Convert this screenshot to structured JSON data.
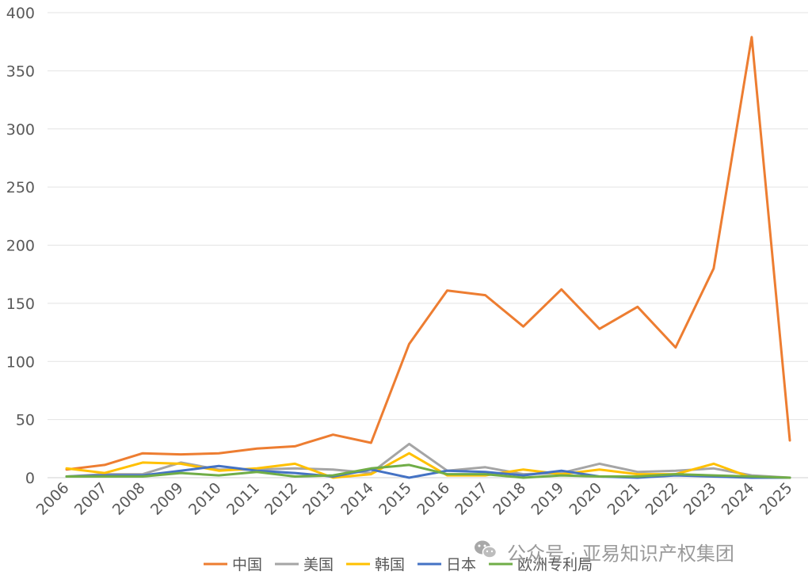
{
  "chart_data": {
    "type": "line",
    "categories": [
      "2006",
      "2007",
      "2008",
      "2009",
      "2010",
      "2011",
      "2012",
      "2013",
      "2014",
      "2015",
      "2016",
      "2017",
      "2018",
      "2019",
      "2020",
      "2021",
      "2022",
      "2023",
      "2024",
      "2025"
    ],
    "ylim": [
      0,
      400
    ],
    "yticks": [
      0,
      50,
      100,
      150,
      200,
      250,
      300,
      350,
      400
    ],
    "grid": true,
    "legend_position": "bottom",
    "series": [
      {
        "name": "中国",
        "color": "#ED7D31",
        "values": [
          7,
          11,
          21,
          20,
          21,
          25,
          27,
          37,
          30,
          115,
          161,
          157,
          130,
          162,
          128,
          147,
          112,
          180,
          379,
          32
        ]
      },
      {
        "name": "美国",
        "color": "#A5A5A5",
        "values": [
          1,
          3,
          3,
          13,
          7,
          7,
          8,
          7,
          4,
          29,
          6,
          9,
          3,
          4,
          12,
          5,
          6,
          8,
          2,
          0
        ]
      },
      {
        "name": "韩国",
        "color": "#FFC000",
        "values": [
          8,
          4,
          13,
          12,
          6,
          8,
          12,
          0,
          3,
          21,
          2,
          2,
          7,
          3,
          7,
          3,
          3,
          12,
          0,
          0
        ]
      },
      {
        "name": "日本",
        "color": "#4472C4",
        "values": [
          1,
          2,
          2,
          6,
          10,
          6,
          4,
          1,
          7,
          0,
          6,
          5,
          2,
          6,
          1,
          0,
          2,
          1,
          0,
          0
        ]
      },
      {
        "name": "欧洲专利局",
        "color": "#70AD47",
        "values": [
          1,
          1,
          1,
          4,
          2,
          5,
          1,
          2,
          8,
          11,
          3,
          3,
          0,
          2,
          1,
          1,
          3,
          2,
          1,
          0
        ]
      }
    ]
  },
  "watermark": {
    "icon": "wechat-icon",
    "text": "公众号 · 亚易知识产权集团"
  }
}
